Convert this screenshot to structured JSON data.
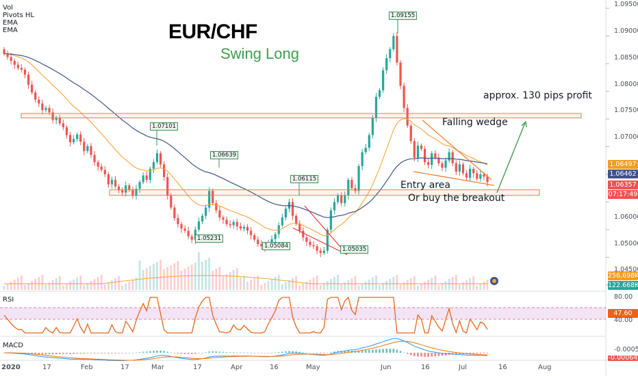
{
  "indicators": {
    "vol": "Vol",
    "pivots": "Pivots HL",
    "ema1": "EMA",
    "ema2": "EMA"
  },
  "title": "EUR/CHF",
  "subtitle": "Swing Long",
  "annotations": {
    "profit": "approx. 130 pips profit",
    "wedge": "Falling wedge",
    "entry": "Entry area",
    "breakout": "Or buy the breakout"
  },
  "price_axis": [
    "1.09500",
    "1.09000",
    "1.08500",
    "1.08000",
    "1.07500",
    "1.07000",
    "1.06500",
    "1.06000",
    "1.05500",
    "1.05000",
    "1.04500"
  ],
  "price_tags": {
    "ema_fast": "1.06497",
    "ema_slow": "1.06462",
    "last": "1.06357",
    "countdown": "07:17:49",
    "vol_a": "256.698K",
    "vol_b": "122.668K"
  },
  "rsi": {
    "label": "RSI",
    "level_top": "80.00",
    "value": "47.60",
    "level_low": "40.00"
  },
  "macd": {
    "label": "MACD",
    "value": "-0.00056",
    "value2": "-0.00064"
  },
  "date_axis": [
    "2020",
    "17",
    "Feb",
    "17",
    "Mar",
    "17",
    "Apr",
    "16",
    "May",
    "Jun",
    "16",
    "Jul",
    "16",
    "Aug"
  ],
  "colors": {
    "up": "#26a69a",
    "down": "#ef5350",
    "ema_fast": "#f7a33a",
    "ema_slow": "#3e5388",
    "rsi_line": "#e8641b",
    "green_note": "#3f9d4e"
  },
  "chart_data": {
    "type": "candlestick",
    "symbol": "EUR/CHF",
    "ylim": [
      1.044,
      1.0965
    ],
    "pivots": [
      {
        "label": "1.07101",
        "value": 1.07101,
        "kind": "high"
      },
      {
        "label": "1.06639",
        "value": 1.06639,
        "kind": "high"
      },
      {
        "label": "1.05231",
        "value": 1.05231,
        "kind": "low"
      },
      {
        "label": "1.06115",
        "value": 1.06115,
        "kind": "high"
      },
      {
        "label": "1.05084",
        "value": 1.05084,
        "kind": "low"
      },
      {
        "label": "1.05035",
        "value": 1.05035,
        "kind": "low"
      },
      {
        "label": "1.09155",
        "value": 1.09155,
        "kind": "high"
      }
    ],
    "closes": [
      1.0868,
      1.0862,
      1.0855,
      1.0848,
      1.0842,
      1.0839,
      1.083,
      1.0812,
      1.0798,
      1.0785,
      1.0778,
      1.0766,
      1.077,
      1.0762,
      1.0748,
      1.0752,
      1.0742,
      1.0735,
      1.0721,
      1.0708,
      1.0714,
      1.0722,
      1.0709,
      1.0692,
      1.0701,
      1.0685,
      1.0672,
      1.0664,
      1.0658,
      1.065,
      1.0632,
      1.064,
      1.0628,
      1.0621,
      1.0617,
      1.063,
      1.0622,
      1.0611,
      1.0624,
      1.0636,
      1.0648,
      1.064,
      1.066,
      1.0672,
      1.0688,
      1.0668,
      1.0645,
      1.0612,
      1.059,
      1.0571,
      1.056,
      1.0552,
      1.0548,
      1.0538,
      1.0532,
      1.055,
      1.0565,
      1.0575,
      1.059,
      1.062,
      1.0598,
      1.0585,
      1.0572,
      1.0568,
      1.056,
      1.0558,
      1.0564,
      1.0556,
      1.0552,
      1.0555,
      1.0548,
      1.054,
      1.0532,
      1.0524,
      1.052,
      1.0518,
      1.0526,
      1.0533,
      1.0542,
      1.0558,
      1.0572,
      1.0588,
      1.06,
      1.0575,
      1.0561,
      1.0548,
      1.0536,
      1.0528,
      1.0522,
      1.052,
      1.0512,
      1.0508,
      1.0512,
      1.055,
      1.0585,
      1.06,
      1.0612,
      1.0598,
      1.0612,
      1.064,
      1.0625,
      1.062,
      1.0665,
      1.069,
      1.0698,
      1.0721,
      1.0752,
      1.079,
      1.0802,
      1.0838,
      1.086,
      1.0876,
      1.09,
      1.0852,
      1.081,
      1.077,
      1.0738,
      1.071,
      1.068,
      1.0702,
      1.0696,
      1.0672,
      1.0667,
      1.0688,
      1.068,
      1.067,
      1.0662,
      1.0675,
      1.069,
      1.067,
      1.0655,
      1.0668,
      1.0652,
      1.0644,
      1.066,
      1.0652,
      1.0642,
      1.065,
      1.0646,
      1.0636
    ]
  }
}
